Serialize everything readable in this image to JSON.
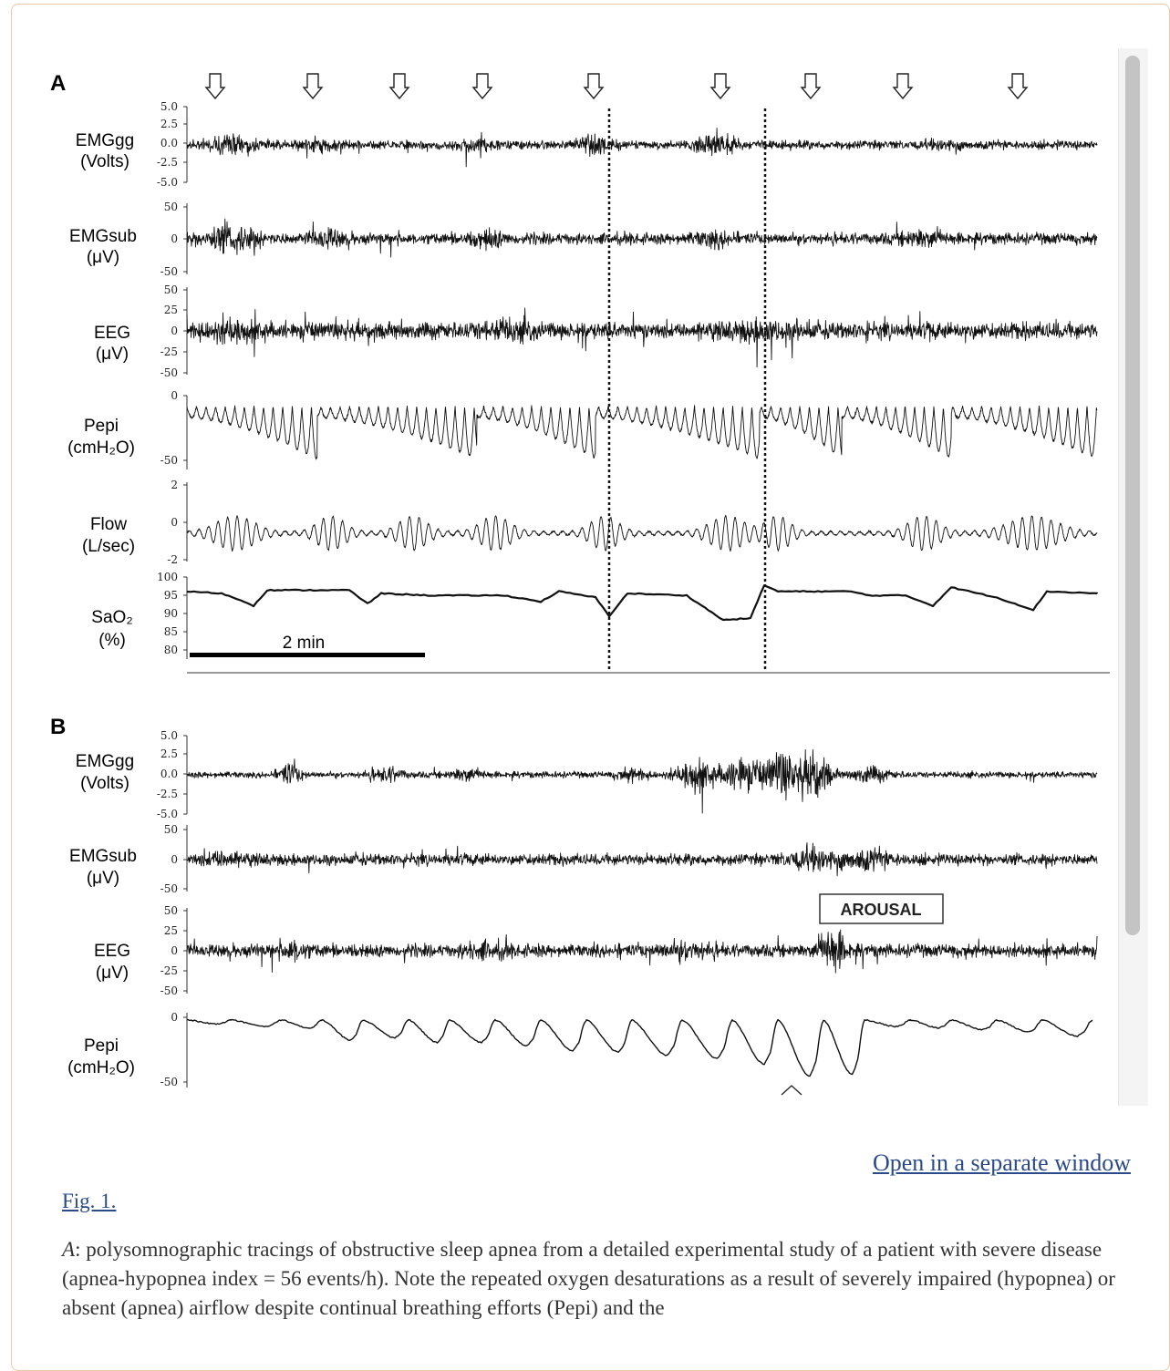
{
  "figure": {
    "panels": [
      {
        "letter": "A",
        "channels": [
          {
            "name": "EMGgg",
            "unit": "(Volts)",
            "ticks": [
              "5.0",
              "2.5",
              "0.0",
              "-2.5",
              "-5.0"
            ]
          },
          {
            "name": "EMGsub",
            "unit": "(μV)",
            "ticks": [
              "50",
              "0",
              "-50"
            ]
          },
          {
            "name": "EEG",
            "unit": "(μV)",
            "ticks": [
              "50",
              "25",
              "0",
              "-25",
              "-50"
            ]
          },
          {
            "name": "Pepi",
            "unit": "(cmH₂O)",
            "ticks": [
              "0",
              "-50"
            ]
          },
          {
            "name": "Flow",
            "unit": "(L/sec)",
            "ticks": [
              "2",
              "0",
              "-2"
            ]
          },
          {
            "name": "SaO₂",
            "unit": "(%)",
            "ticks": [
              "100",
              "95",
              "90",
              "85",
              "80"
            ]
          }
        ],
        "scale_bar_label": "2 min"
      },
      {
        "letter": "B",
        "channels": [
          {
            "name": "EMGgg",
            "unit": "(Volts)",
            "ticks": [
              "5.0",
              "2.5",
              "0.0",
              "-2.5",
              "-5.0"
            ]
          },
          {
            "name": "EMGsub",
            "unit": "(μV)",
            "ticks": [
              "50",
              "0",
              "-50"
            ]
          },
          {
            "name": "EEG",
            "unit": "(μV)",
            "ticks": [
              "50",
              "25",
              "0",
              "-25",
              "-50"
            ]
          },
          {
            "name": "Pepi",
            "unit": "(cmH₂O)",
            "ticks": [
              "0",
              "-50"
            ]
          }
        ],
        "arousal_label": "AROUSAL"
      }
    ]
  },
  "links": {
    "open_window": "Open in a separate window",
    "fig_label": "Fig. 1."
  },
  "caption": {
    "panel_ref": "A",
    "text": ": polysomnographic tracings of obstructive sleep apnea from a detailed experimental study of a patient with severe disease (apnea-hypopnea index = 56 events/h). Note the repeated oxygen desaturations as a result of severely impaired (hypopnea) or absent (apnea) airflow despite continual breathing efforts (Pepi) and the"
  }
}
